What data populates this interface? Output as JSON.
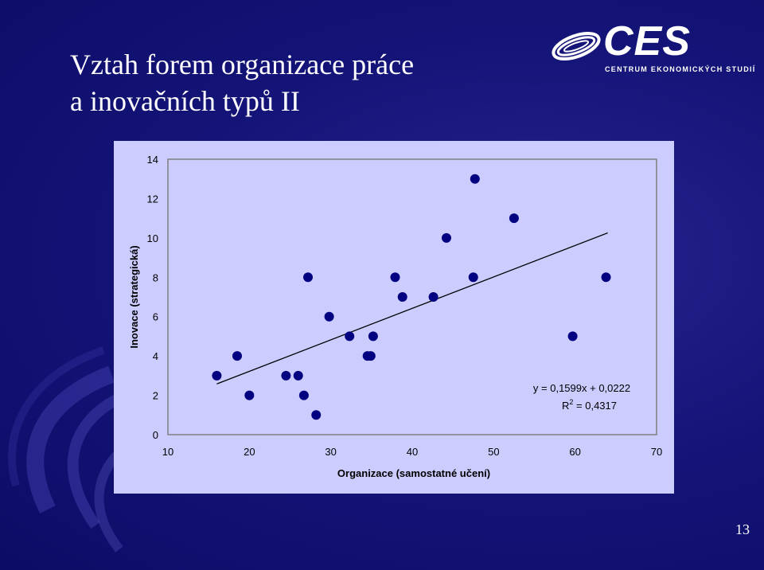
{
  "slide": {
    "title_line1": "Vztah forem organizace práce",
    "title_line2": "a inovačních typů II",
    "page_number": "13"
  },
  "logo": {
    "name": "CES",
    "subtitle": "CENTRUM EKONOMICKÝCH STUDIÍ"
  },
  "colors": {
    "background": "#15157a",
    "plot_area": "#ccccff",
    "marker": "#000080",
    "trendline": "#000000",
    "text": "#000000"
  },
  "chart_data": {
    "type": "scatter",
    "xlabel": "Organizace (samostatné učení)",
    "ylabel": "Inovace (strategická)",
    "xlim": [
      10,
      70
    ],
    "ylim": [
      0,
      14
    ],
    "xticks": [
      10,
      20,
      30,
      40,
      50,
      60,
      70
    ],
    "yticks": [
      0,
      2,
      4,
      6,
      8,
      10,
      12,
      14
    ],
    "grid": false,
    "points": [
      {
        "x": 16.0,
        "y": 3
      },
      {
        "x": 18.5,
        "y": 4
      },
      {
        "x": 20.0,
        "y": 2
      },
      {
        "x": 24.5,
        "y": 3
      },
      {
        "x": 26.0,
        "y": 3
      },
      {
        "x": 26.7,
        "y": 2
      },
      {
        "x": 27.2,
        "y": 8
      },
      {
        "x": 28.2,
        "y": 1
      },
      {
        "x": 29.8,
        "y": 6
      },
      {
        "x": 32.3,
        "y": 5
      },
      {
        "x": 34.5,
        "y": 4
      },
      {
        "x": 34.9,
        "y": 4
      },
      {
        "x": 35.2,
        "y": 5
      },
      {
        "x": 37.9,
        "y": 8
      },
      {
        "x": 38.8,
        "y": 7
      },
      {
        "x": 42.6,
        "y": 7
      },
      {
        "x": 44.2,
        "y": 10
      },
      {
        "x": 47.5,
        "y": 8
      },
      {
        "x": 47.7,
        "y": 13
      },
      {
        "x": 52.5,
        "y": 11
      },
      {
        "x": 59.7,
        "y": 5
      },
      {
        "x": 63.8,
        "y": 8
      }
    ],
    "trendline": {
      "type": "linear",
      "x_start": 16.0,
      "x_end": 64.0,
      "slope": 0.1599,
      "intercept": 0.0222,
      "equation": "y = 0,1599x + 0,0222",
      "r2_label": "R",
      "r2_sup": "2",
      "r2_value": " = 0,4317"
    }
  }
}
